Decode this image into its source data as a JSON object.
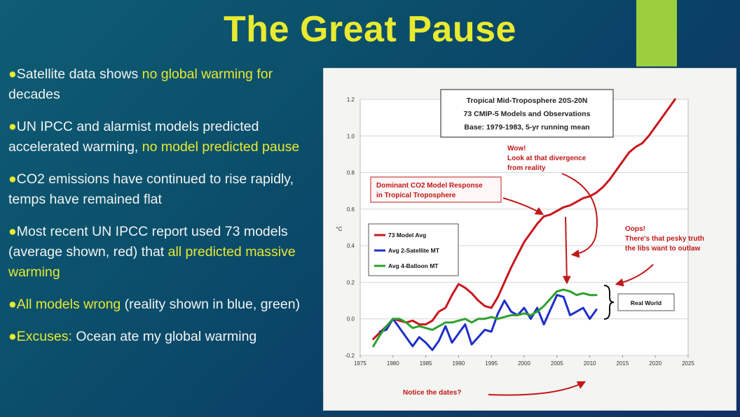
{
  "slide": {
    "title": "The Great Pause",
    "bullets": [
      {
        "parts": [
          {
            "text": "Satellite data shows ",
            "hl": false
          },
          {
            "text": "no global warming",
            "hl": true
          },
          {
            "text": " ",
            "hl": false
          },
          {
            "text": "for",
            "hl": true
          },
          {
            "text": " decades",
            "hl": false
          }
        ]
      },
      {
        "parts": [
          {
            "text": "UN IPCC and alarmist models predicted accelerated warming, ",
            "hl": false
          },
          {
            "text": "no model predicted pause",
            "hl": true
          }
        ]
      },
      {
        "parts": [
          {
            "text": "CO2 emissions have continued to rise rapidly, temps have remained flat",
            "hl": false
          }
        ]
      },
      {
        "parts": [
          {
            "text": "Most recent UN IPCC report used 73 models (average shown, red) that ",
            "hl": false
          },
          {
            "text": "all predicted massive warming",
            "hl": true
          }
        ]
      },
      {
        "parts": [
          {
            "text": "All models wrong",
            "hl": true
          },
          {
            "text": " (reality shown in blue, green)",
            "hl": false
          }
        ]
      },
      {
        "parts": [
          {
            "text": "Excuses:",
            "hl": true
          },
          {
            "text": " Ocean ate my global warming",
            "hl": false
          }
        ]
      }
    ],
    "colors": {
      "highlight": "#e8ea30",
      "accent_bar": "#9ccf3c"
    }
  },
  "chart_data": {
    "type": "line",
    "title_lines": [
      "Tropical Mid-Troposphere 20S-20N",
      "73 CMIP-5 Models and Observations",
      "Base: 1979-1983, 5-yr running mean"
    ],
    "ylabel": "°C",
    "xlim": [
      1975,
      2025
    ],
    "ylim": [
      -0.2,
      1.2
    ],
    "xticks": [
      1975,
      1980,
      1985,
      1990,
      1995,
      2000,
      2005,
      2010,
      2015,
      2020,
      2025
    ],
    "yticks": [
      -0.2,
      0.0,
      0.2,
      0.4,
      0.6,
      0.8,
      1.0,
      1.2
    ],
    "ytick_labels": [
      "-0.2",
      "0.0",
      "0.2",
      "0.4",
      "0.6",
      "0.8",
      "1.0",
      "1.2"
    ],
    "series": [
      {
        "name": "73 Model Avg",
        "color": "#c8161d",
        "x": [
          1977,
          1979,
          1980,
          1981,
          1982,
          1983,
          1984,
          1985,
          1986,
          1987,
          1988,
          1989,
          1990,
          1991,
          1992,
          1993,
          1994,
          1995,
          1996,
          1997,
          1998,
          1999,
          2000,
          2001,
          2002,
          2003,
          2004,
          2005,
          2006,
          2007,
          2008,
          2009,
          2010,
          2011,
          2012,
          2013,
          2014,
          2015,
          2016,
          2017,
          2018,
          2019,
          2020,
          2021,
          2022,
          2023
        ],
        "y": [
          -0.11,
          -0.04,
          0.0,
          -0.01,
          -0.02,
          -0.01,
          -0.03,
          -0.03,
          -0.01,
          0.04,
          0.06,
          0.13,
          0.19,
          0.17,
          0.14,
          0.1,
          0.07,
          0.06,
          0.12,
          0.2,
          0.28,
          0.35,
          0.42,
          0.47,
          0.52,
          0.56,
          0.57,
          0.59,
          0.61,
          0.62,
          0.64,
          0.66,
          0.67,
          0.69,
          0.72,
          0.76,
          0.81,
          0.86,
          0.91,
          0.94,
          0.96,
          1.0,
          1.05,
          1.1,
          1.15,
          1.2
        ]
      },
      {
        "name": "Avg 2-Satellite MT",
        "color": "#1f2fc8",
        "x": [
          1978,
          1979,
          1980,
          1981,
          1982,
          1983,
          1984,
          1985,
          1986,
          1987,
          1988,
          1989,
          1990,
          1991,
          1992,
          1993,
          1994,
          1995,
          1996,
          1997,
          1998,
          1999,
          2000,
          2001,
          2002,
          2003,
          2004,
          2005,
          2006,
          2007,
          2008,
          2009,
          2010,
          2011
        ],
        "y": [
          -0.07,
          -0.06,
          0.0,
          -0.05,
          -0.1,
          -0.15,
          -0.1,
          -0.13,
          -0.17,
          -0.12,
          -0.04,
          -0.13,
          -0.08,
          -0.03,
          -0.14,
          -0.1,
          -0.06,
          -0.07,
          0.03,
          0.1,
          0.04,
          0.02,
          0.06,
          0.0,
          0.06,
          -0.03,
          0.05,
          0.13,
          0.12,
          0.02,
          0.04,
          0.06,
          0.0,
          0.05
        ]
      },
      {
        "name": "Avg 4-Balloon MT",
        "color": "#2da02d",
        "x": [
          1977,
          1978,
          1979,
          1980,
          1981,
          1982,
          1983,
          1984,
          1985,
          1986,
          1987,
          1988,
          1989,
          1990,
          1991,
          1992,
          1993,
          1994,
          1995,
          1996,
          1997,
          1998,
          1999,
          2000,
          2001,
          2002,
          2003,
          2004,
          2005,
          2006,
          2007,
          2008,
          2009,
          2010,
          2011
        ],
        "y": [
          -0.15,
          -0.09,
          -0.04,
          0.0,
          0.0,
          -0.02,
          -0.05,
          -0.04,
          -0.05,
          -0.06,
          -0.04,
          -0.02,
          -0.02,
          -0.01,
          0.0,
          -0.02,
          0.0,
          0.0,
          0.01,
          0.0,
          0.01,
          0.02,
          0.02,
          0.03,
          0.02,
          0.04,
          0.07,
          0.11,
          0.15,
          0.16,
          0.15,
          0.13,
          0.14,
          0.13,
          0.13
        ]
      }
    ],
    "legend": "upper-left",
    "annotations": {
      "dominant": [
        "Dominant CO2 Model Response",
        "in Tropical Troposphere"
      ],
      "wow": [
        "Wow!",
        "Look at that divergence",
        "from reality"
      ],
      "oops": [
        "Oops!",
        "There's that pesky truth",
        "the libs want to outlaw"
      ],
      "real_world": "Real World",
      "notice": "Notice the dates?"
    }
  }
}
